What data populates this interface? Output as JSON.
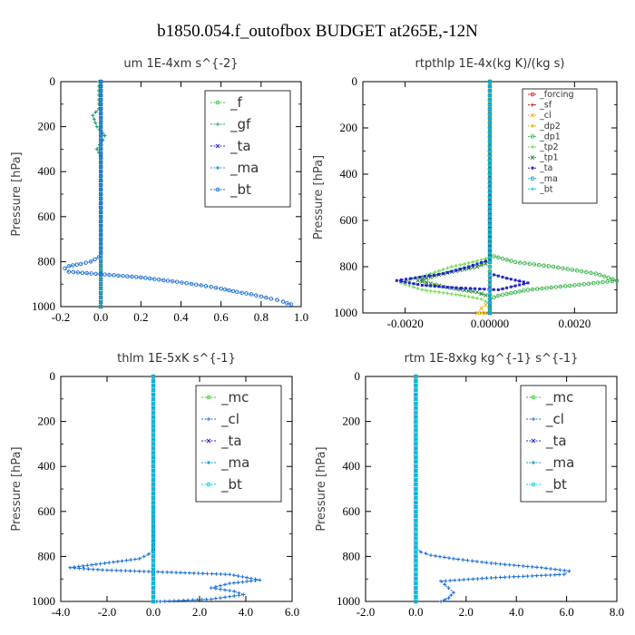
{
  "figure": {
    "title": "b1850.054.f_outofbox  BUDGET at265E,-12N"
  },
  "colors": {
    "forcing": "#d62020",
    "sf": "#c81e1e",
    "cl": "#1a6fd6",
    "dp2": "#f5b400",
    "dp1": "#39b54a",
    "tp2": "#6ad84a",
    "tp1": "#2a8a3a",
    "ta": "#2222cc",
    "ma": "#1ea0c8",
    "bt": "#00d0e0",
    "f": "#39c439",
    "gf": "#20a070",
    "mc": "#39c439"
  },
  "chart_data": [
    {
      "type": "line",
      "title": "um  1E-4xm s^{-2}",
      "ylabel": "Pressure [hPa]",
      "xlim": [
        -0.2,
        1.0
      ],
      "ylim": [
        1000,
        0
      ],
      "xticks": [
        "-0.2",
        "0.0",
        "0.2",
        "0.4",
        "0.6",
        "0.8",
        "1.0"
      ],
      "yticks": [
        "0",
        "200",
        "400",
        "600",
        "800",
        "1000"
      ],
      "legend": {
        "position": "top-right",
        "size": "large"
      },
      "series": [
        {
          "name": "_f",
          "color_key": "f",
          "x": [
            0.0,
            0.0,
            0.0,
            0.0,
            0.0,
            0.0,
            0.0
          ],
          "y": [
            0,
            200,
            400,
            600,
            800,
            900,
            1000
          ]
        },
        {
          "name": "_gf",
          "color_key": "gf",
          "x": [
            -0.01,
            -0.01,
            -0.04,
            -0.02,
            0.02,
            0.01,
            -0.02,
            0.0,
            0.0,
            0.0,
            0.0,
            0.0,
            0.0,
            0.0,
            0.0,
            0.0
          ],
          "y": [
            0,
            120,
            150,
            200,
            240,
            260,
            300,
            330,
            400,
            500,
            600,
            700,
            800,
            850,
            900,
            1000
          ]
        },
        {
          "name": "_ta",
          "color_key": "ta",
          "x": [
            0.0,
            0.0,
            0.0,
            0.0,
            0.0,
            0.0,
            0.0
          ],
          "y": [
            0,
            200,
            400,
            600,
            800,
            900,
            1000
          ]
        },
        {
          "name": "_ma",
          "color_key": "ma",
          "x": [
            0.0,
            0.0,
            0.0,
            0.0,
            0.0,
            0.0,
            0.0
          ],
          "y": [
            0,
            200,
            400,
            600,
            800,
            900,
            1000
          ]
        },
        {
          "name": "_bt",
          "color_key": "cl",
          "x": [
            0.0,
            0.0,
            0.0,
            0.0,
            0.0,
            -0.01,
            -0.05,
            -0.1,
            -0.16,
            -0.18,
            -0.16,
            0.2,
            0.38,
            0.5,
            0.6,
            0.68,
            0.75,
            0.8,
            0.85,
            0.88,
            0.91,
            0.93,
            0.95
          ],
          "y": [
            0,
            200,
            400,
            600,
            760,
            780,
            800,
            810,
            820,
            830,
            845,
            870,
            890,
            905,
            920,
            935,
            945,
            955,
            965,
            970,
            978,
            985,
            990
          ]
        }
      ]
    },
    {
      "type": "line",
      "title": "rtpthlp  1E-4x(kg K)/(kg s)",
      "ylabel": "Pressure [hPa]",
      "xlim": [
        -0.003,
        0.003
      ],
      "ylim": [
        1000,
        0
      ],
      "xticks": [
        "-0.0020",
        "0.00000",
        "0.0020"
      ],
      "xtickvals": [
        -0.002,
        0.0,
        0.002
      ],
      "yticks": [
        "0",
        "200",
        "400",
        "600",
        "800",
        "1000"
      ],
      "legend": {
        "position": "top-right",
        "size": "small"
      },
      "series": [
        {
          "name": "_forcing",
          "color_key": "forcing",
          "x": [
            0,
            0,
            0,
            0,
            0,
            0
          ],
          "y": [
            0,
            200,
            400,
            600,
            800,
            1000
          ]
        },
        {
          "name": "_sf",
          "color_key": "sf",
          "x": [
            0,
            0,
            0,
            0,
            0,
            0
          ],
          "y": [
            0,
            200,
            400,
            600,
            800,
            1000
          ]
        },
        {
          "name": "_cl",
          "color_key": "dp2",
          "x": [
            0,
            0,
            0,
            0,
            -0.0002,
            -0.0003,
            0
          ],
          "y": [
            0,
            400,
            800,
            950,
            980,
            1000,
            1000
          ]
        },
        {
          "name": "_dp2",
          "color_key": "dp2",
          "x": [
            0,
            0,
            0,
            0,
            0
          ],
          "y": [
            0,
            400,
            800,
            900,
            1000
          ]
        },
        {
          "name": "_dp1",
          "color_key": "dp1",
          "x": [
            0,
            0,
            0.0006,
            0.0015,
            0.0025,
            0.003,
            0.002,
            0.0009,
            0.0002,
            0.0,
            0.0,
            0.0
          ],
          "y": [
            0,
            750,
            780,
            800,
            830,
            860,
            880,
            900,
            925,
            940,
            970,
            1000
          ]
        },
        {
          "name": "_tp2",
          "color_key": "tp2",
          "x": [
            0,
            0,
            -0.0004,
            -0.0009,
            -0.0014,
            -0.0021,
            -0.0016,
            -0.0008,
            -0.0002,
            0,
            0
          ],
          "y": [
            0,
            760,
            780,
            800,
            830,
            870,
            900,
            920,
            940,
            960,
            1000
          ]
        },
        {
          "name": "_tp1",
          "color_key": "tp1",
          "x": [
            0,
            0,
            -0.0003,
            -0.0011,
            -0.0017,
            -0.001,
            -0.0003,
            0,
            0
          ],
          "y": [
            0,
            780,
            800,
            830,
            860,
            890,
            910,
            930,
            1000
          ]
        },
        {
          "name": "_ta",
          "color_key": "ta",
          "x": [
            0,
            0,
            -0.0005,
            -0.0011,
            -0.0022,
            -0.0016,
            -0.0009,
            0.0002,
            0.0009,
            0.0004,
            0,
            0
          ],
          "y": [
            0,
            770,
            800,
            830,
            860,
            880,
            890,
            900,
            870,
            850,
            830,
            1000
          ]
        },
        {
          "name": "_ma",
          "color_key": "ma",
          "x": [
            0,
            0,
            0,
            0,
            0
          ],
          "y": [
            0,
            400,
            800,
            900,
            1000
          ]
        },
        {
          "name": "_bt",
          "color_key": "bt",
          "x": [
            0,
            0,
            0,
            0,
            0
          ],
          "y": [
            0,
            400,
            800,
            900,
            1000
          ]
        }
      ]
    },
    {
      "type": "line",
      "title": "thlm  1E-5xK s^{-1}",
      "ylabel": "Pressure [hPa]",
      "xlim": [
        -4.0,
        6.0
      ],
      "ylim": [
        1000,
        0
      ],
      "xticks": [
        "-4.0",
        "-2.0",
        "0.0",
        "2.0",
        "4.0",
        "6.0"
      ],
      "yticks": [
        "0",
        "200",
        "400",
        "600",
        "800",
        "1000"
      ],
      "legend": {
        "position": "top-right",
        "size": "large"
      },
      "series": [
        {
          "name": "_mc",
          "color_key": "mc",
          "x": [
            0,
            0,
            0,
            0,
            0,
            0,
            0
          ],
          "y": [
            0,
            200,
            400,
            600,
            800,
            900,
            1000
          ]
        },
        {
          "name": "_cl",
          "color_key": "cl",
          "x": [
            0,
            0,
            -0.2,
            -0.6,
            -2.1,
            -3.6,
            -2.2,
            0.6,
            3.3,
            4.6,
            3.3,
            2.5,
            3.5,
            3.9,
            2.5,
            0.3,
            0.0
          ],
          "y": [
            0,
            770,
            790,
            810,
            830,
            850,
            860,
            870,
            880,
            905,
            920,
            940,
            955,
            970,
            990,
            1000,
            1000
          ]
        },
        {
          "name": "_ta",
          "color_key": "ta",
          "x": [
            0,
            0,
            0,
            0,
            0,
            0
          ],
          "y": [
            0,
            200,
            400,
            600,
            800,
            1000
          ]
        },
        {
          "name": "_ma",
          "color_key": "ma",
          "x": [
            0,
            0,
            0,
            0,
            0,
            0
          ],
          "y": [
            0,
            200,
            400,
            600,
            800,
            1000
          ]
        },
        {
          "name": "_bt",
          "color_key": "bt",
          "x": [
            0,
            0,
            0,
            0,
            0,
            0
          ],
          "y": [
            0,
            200,
            400,
            600,
            800,
            1000
          ]
        }
      ]
    },
    {
      "type": "line",
      "title": "rtm  1E-8xkg kg^{-1} s^{-1}",
      "ylabel": "Pressure [hPa]",
      "xlim": [
        -2.0,
        8.0
      ],
      "ylim": [
        1000,
        0
      ],
      "xticks": [
        "-2.0",
        "0.0",
        "2.0",
        "4.0",
        "6.0",
        "8.0"
      ],
      "yticks": [
        "0",
        "200",
        "400",
        "600",
        "800",
        "1000"
      ],
      "legend": {
        "position": "top-right",
        "size": "large"
      },
      "series": [
        {
          "name": "_mc",
          "color_key": "mc",
          "x": [
            0,
            0,
            0,
            0,
            0,
            0,
            0
          ],
          "y": [
            0,
            200,
            400,
            600,
            800,
            900,
            1000
          ]
        },
        {
          "name": "_cl",
          "color_key": "cl",
          "x": [
            0,
            0,
            0.2,
            0.6,
            1.5,
            3.0,
            5.0,
            6.1,
            5.9,
            3.0,
            1.0,
            1.3,
            1.5,
            1.3,
            1.0
          ],
          "y": [
            0,
            760,
            780,
            795,
            810,
            830,
            850,
            865,
            880,
            895,
            910,
            940,
            960,
            985,
            1000
          ]
        },
        {
          "name": "_ta",
          "color_key": "ta",
          "x": [
            0,
            0,
            0,
            0,
            0,
            0
          ],
          "y": [
            0,
            200,
            400,
            600,
            800,
            1000
          ]
        },
        {
          "name": "_ma",
          "color_key": "ma",
          "x": [
            0,
            0,
            0,
            0,
            0,
            0
          ],
          "y": [
            0,
            200,
            400,
            600,
            800,
            1000
          ]
        },
        {
          "name": "_bt",
          "color_key": "bt",
          "x": [
            0,
            0,
            0,
            0,
            0,
            0
          ],
          "y": [
            0,
            200,
            400,
            600,
            800,
            1000
          ]
        }
      ]
    }
  ]
}
